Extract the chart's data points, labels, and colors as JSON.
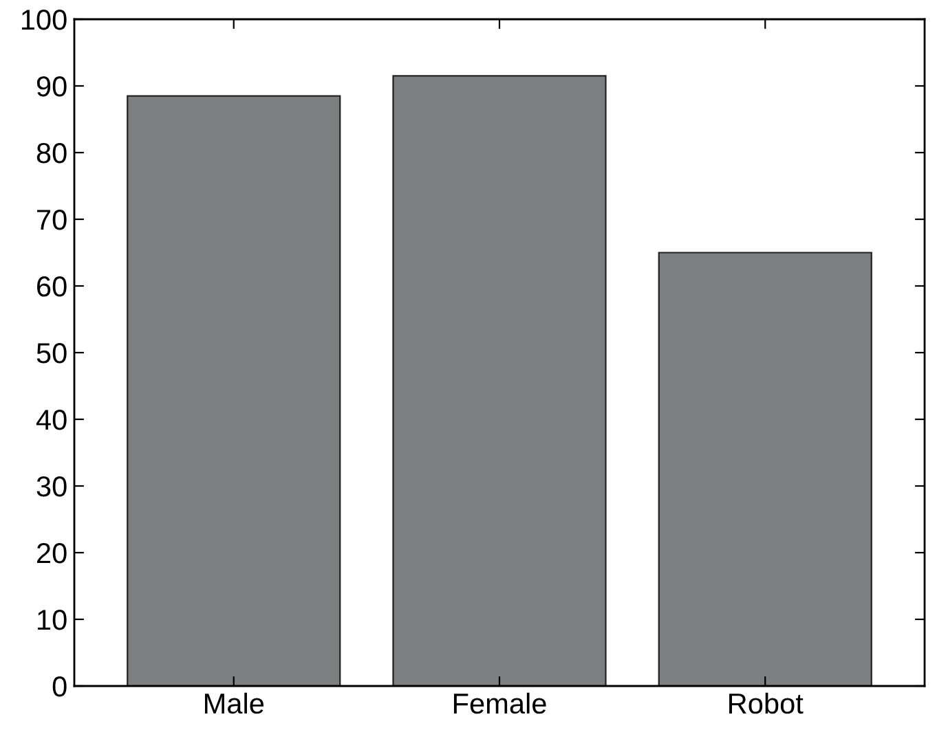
{
  "chart_data": {
    "type": "bar",
    "categories": [
      "Male",
      "Female",
      "Robot"
    ],
    "values": [
      88.5,
      91.5,
      65.0
    ],
    "color": "#7d8080",
    "ylim": [
      0,
      100
    ],
    "yticks": [
      0,
      10,
      20,
      30,
      40,
      50,
      60,
      70,
      80,
      90,
      100
    ],
    "grid": false
  }
}
